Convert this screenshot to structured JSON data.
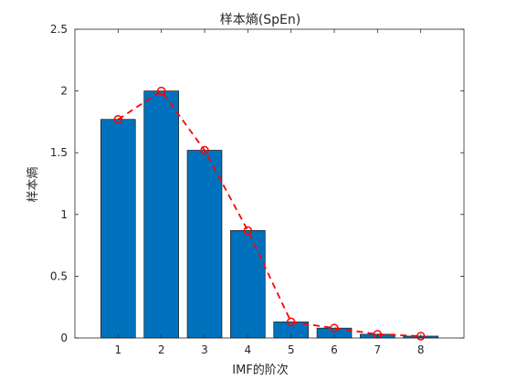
{
  "chart_data": {
    "type": "bar",
    "title": "样本熵(SpEn)",
    "xlabel": "IMF的阶次",
    "ylabel": "样本熵",
    "categories": [
      "1",
      "2",
      "3",
      "4",
      "5",
      "6",
      "7",
      "8"
    ],
    "x": [
      1,
      2,
      3,
      4,
      5,
      6,
      7,
      8
    ],
    "series": [
      {
        "type": "bar",
        "values": [
          1.77,
          2.0,
          1.52,
          0.87,
          0.13,
          0.08,
          0.03,
          0.015
        ]
      },
      {
        "type": "line",
        "values": [
          1.77,
          2.0,
          1.52,
          0.87,
          0.13,
          0.08,
          0.03,
          0.015
        ]
      }
    ],
    "xlim": [
      0,
      9
    ],
    "ylim": [
      0,
      2.5
    ],
    "yticks": [
      0,
      0.5,
      1,
      1.5,
      2,
      2.5
    ],
    "ytick_labels": [
      "0",
      "0.5",
      "1",
      "1.5",
      "2",
      "2.5"
    ],
    "grid": false,
    "legend": "none",
    "colors": {
      "bar_fill": "#0072BD",
      "bar_edge": "#1a1a1a",
      "line": "#FF0000",
      "axis": "#262626"
    }
  }
}
